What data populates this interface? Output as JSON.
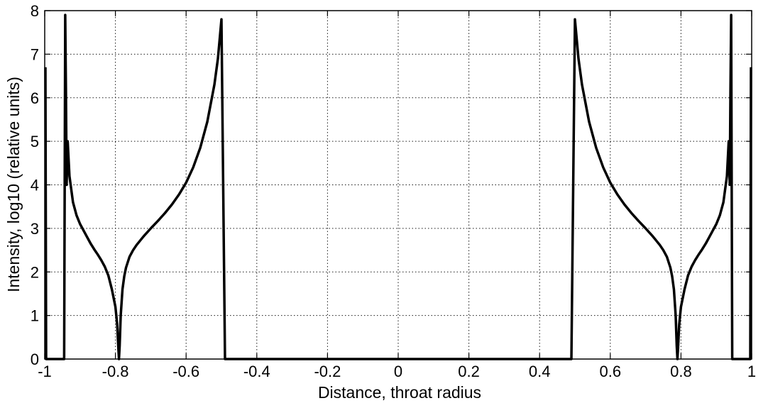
{
  "chart_data": {
    "type": "line",
    "title": "",
    "xlabel": "Distance,    throat radius",
    "ylabel": "Intensity,  log10 (relative units)",
    "xlim": [
      -1,
      1
    ],
    "ylim": [
      0,
      8
    ],
    "xticks": [
      "-1",
      "-0.8",
      "-0.6",
      "-0.4",
      "-0.2",
      "0",
      "0.2",
      "0.4",
      "0.6",
      "0.8",
      "1"
    ],
    "yticks": [
      "0",
      "1",
      "2",
      "3",
      "4",
      "5",
      "6",
      "7",
      "8"
    ],
    "grid": true,
    "line_color": "#000000",
    "series": [
      {
        "x": [
          -0.998,
          -0.996,
          -0.994,
          -0.992,
          -0.99,
          -0.985,
          -0.98,
          -0.975,
          -0.97,
          -0.965,
          -0.96,
          -0.955,
          -0.95,
          -0.945,
          -0.942,
          -0.94,
          -0.938,
          -0.935,
          -0.93,
          -0.925,
          -0.92,
          -0.91,
          -0.9,
          -0.89,
          -0.88,
          -0.87,
          -0.86,
          -0.85,
          -0.84,
          -0.83,
          -0.82,
          -0.81,
          -0.8,
          -0.795,
          -0.792,
          -0.79,
          -0.788,
          -0.785,
          -0.78,
          -0.775,
          -0.77,
          -0.76,
          -0.75,
          -0.74,
          -0.73,
          -0.72,
          -0.7,
          -0.68,
          -0.66,
          -0.64,
          -0.62,
          -0.6,
          -0.58,
          -0.56,
          -0.54,
          -0.52,
          -0.51,
          -0.5,
          -0.49,
          -0.48,
          -0.475,
          -0.472,
          -0.47,
          -0.468,
          -0.465,
          -0.46,
          -0.45,
          -0.44,
          -0.43,
          -0.42,
          -0.4,
          -0.35,
          -0.3,
          -0.25,
          -0.2,
          -0.15,
          -0.1,
          -0.05,
          0,
          0.05,
          0.1,
          0.15,
          0.2,
          0.25,
          0.3,
          0.35,
          0.4,
          0.42,
          0.43,
          0.44,
          0.45,
          0.46,
          0.465,
          0.468,
          0.47,
          0.472,
          0.475,
          0.48,
          0.49,
          0.5,
          0.51,
          0.52,
          0.54,
          0.56,
          0.58,
          0.6,
          0.62,
          0.64,
          0.66,
          0.68,
          0.7,
          0.72,
          0.73,
          0.74,
          0.75,
          0.76,
          0.77,
          0.775,
          0.78,
          0.785,
          0.788,
          0.79,
          0.792,
          0.795,
          0.8,
          0.81,
          0.82,
          0.83,
          0.84,
          0.85,
          0.86,
          0.87,
          0.88,
          0.89,
          0.9,
          0.91,
          0.92,
          0.925,
          0.93,
          0.935,
          0.938,
          0.94,
          0.942,
          0.945,
          0.95,
          0.955,
          0.96,
          0.965,
          0.97,
          0.975,
          0.98,
          0.985,
          0.99,
          0.992,
          0.994,
          0.996,
          0.998
        ],
        "y": [
          6.7,
          0,
          0,
          0,
          0,
          0,
          0,
          0,
          0,
          0,
          0,
          0,
          0,
          0,
          7.9,
          6.2,
          4.0,
          5.0,
          4.2,
          3.9,
          3.6,
          3.3,
          3.1,
          2.95,
          2.8,
          2.65,
          2.52,
          2.4,
          2.27,
          2.12,
          1.92,
          1.6,
          1.2,
          0.8,
          0.3,
          0,
          0.3,
          1.0,
          1.6,
          1.9,
          2.1,
          2.35,
          2.5,
          2.62,
          2.72,
          2.82,
          3.0,
          3.17,
          3.35,
          3.55,
          3.78,
          4.05,
          4.4,
          4.85,
          5.45,
          6.3,
          6.9,
          7.8,
          0,
          0,
          0,
          0,
          0,
          0,
          0,
          0,
          0,
          0,
          0,
          0,
          0,
          0,
          0,
          0,
          0,
          0,
          0,
          0,
          0,
          0,
          0,
          0,
          0,
          0,
          0,
          0,
          0,
          0,
          0,
          0,
          0,
          0,
          0,
          0,
          0,
          0,
          0,
          0,
          0,
          7.8,
          6.9,
          6.3,
          5.45,
          4.85,
          4.4,
          4.05,
          3.78,
          3.55,
          3.35,
          3.17,
          3.0,
          2.82,
          2.72,
          2.62,
          2.5,
          2.35,
          2.1,
          1.9,
          1.6,
          1.0,
          0.3,
          0,
          0.3,
          0.8,
          1.2,
          1.6,
          1.92,
          2.12,
          2.27,
          2.4,
          2.52,
          2.65,
          2.8,
          2.95,
          3.1,
          3.3,
          3.6,
          3.9,
          4.2,
          5.0,
          4.0,
          6.2,
          7.9,
          0,
          0,
          0,
          0,
          0,
          0,
          0,
          0,
          0,
          0,
          0,
          0,
          0,
          6.7
        ]
      }
    ]
  }
}
